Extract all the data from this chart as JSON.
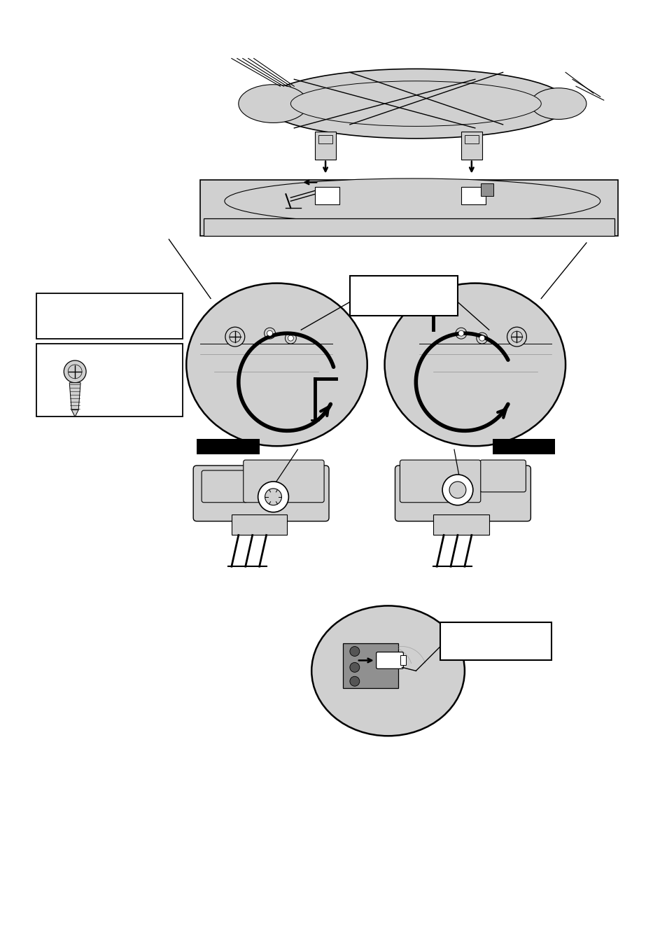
{
  "background_color": "#ffffff",
  "page_width": 9.54,
  "page_height": 13.5,
  "dpi": 100,
  "gray": "#c8c8c8",
  "lgray": "#d0d0d0",
  "dgray": "#909090",
  "black": "#000000",
  "white": "#ffffff"
}
